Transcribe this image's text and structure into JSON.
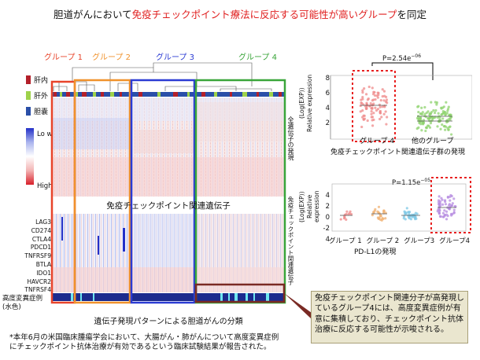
{
  "title": {
    "prefix": "胆道がんにおいて",
    "highlight": "免疫チェックポイント療法に反応する可能性が高いグループ",
    "suffix": "を同定"
  },
  "groups": [
    "グループ 1",
    "グループ 2",
    "グループ 3",
    "グループ 4"
  ],
  "group_colors": [
    "#e8442a",
    "#f0922c",
    "#2b3bd3",
    "#3aa53a"
  ],
  "location_legend": [
    {
      "label": "肝内",
      "color": "#b3202a"
    },
    {
      "label": "肝外",
      "color": "#9ed24a"
    },
    {
      "label": "胆嚢",
      "color": "#2a4fa8"
    }
  ],
  "color_scale": {
    "low": "Lo w",
    "high": "High"
  },
  "heatmap_side_label": "全遺伝子の発現",
  "checkpoint_header": "免疫チェックポイント関連遺伝子",
  "checkpoint_side_label": "免疫チェックポイント関連遺伝子",
  "genes": [
    "LAG3",
    "CD274",
    "CTLA4",
    "PDCD1",
    "TNFRSF9",
    "BTLA",
    "IDO1",
    "HAVCR2",
    "TNFRSF4"
  ],
  "tmb_label_line1": "高度変異症例",
  "tmb_label_line2": "(水色)",
  "heatmap_caption": "遺伝子発現パターンによる胆道がんの分類",
  "plot1": {
    "p_value": "P=2.54e",
    "p_exp": "−06",
    "ylabel": "Relative expression",
    "ylabel_unit": "(Log(EXP))",
    "yticks": [
      "8",
      "6",
      "4",
      "2"
    ],
    "categories": [
      "グループ 4",
      "他のグループ"
    ],
    "caption": "免疫チェックポイント関連遺伝子群の発現"
  },
  "plot2": {
    "p_value": "P=1.15e",
    "p_exp": "−05",
    "ylabel": "Relative expression",
    "ylabel_unit": "(Log(EXP))",
    "yticks": [
      "4",
      "2",
      "0",
      "-2",
      "4"
    ],
    "categories": [
      "グループ 1",
      "グループ 2",
      "グループ3",
      "グループ4"
    ],
    "caption": "PD-L1の発現"
  },
  "callout": "免疫チェックポイント関連分子が高発現しているグループ4には、高度変異症例が有意に集積しており、チェックポイント抗体治療に反応する可能性が示唆される。",
  "footnote_line1": "*本年6月の米国臨床腫瘍学会において、大腸がん・肺がんについて高度変異症例",
  "footnote_line2": "にチェックポイント抗体治療が有効であるという臨床試験結果が報告された。"
}
